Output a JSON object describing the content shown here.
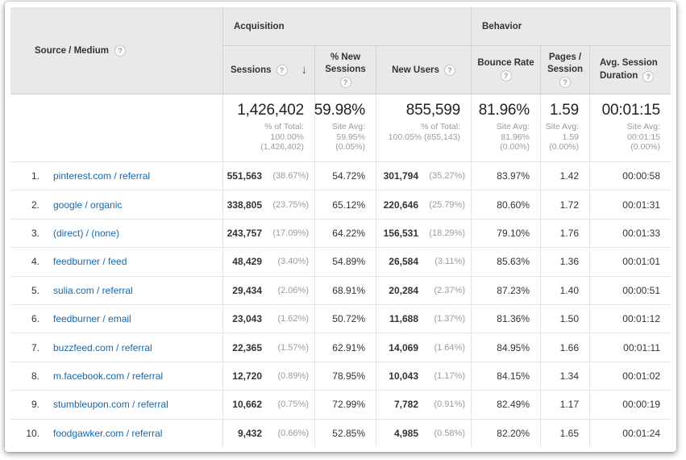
{
  "colors": {
    "link": "#1767ae",
    "header_bg": "#e9e9e9",
    "border": "#d4d4d4",
    "row_border": "#e5e5e5",
    "muted_text": "#9b9b9b"
  },
  "icons": {
    "help": "?",
    "sort_descending": "↓"
  },
  "header": {
    "corner_label": "Source / Medium",
    "groups": {
      "acquisition": "Acquisition",
      "behavior": "Behavior"
    },
    "columns": {
      "sessions": {
        "label": "Sessions"
      },
      "pct_new_sessions": {
        "line1": "% New",
        "line2": "Sessions"
      },
      "new_users": {
        "label": "New Users"
      },
      "bounce_rate": {
        "label": "Bounce Rate"
      },
      "pages_per_session": {
        "line1": "Pages /",
        "line2": "Session"
      },
      "avg_session_duration": {
        "line1": "Avg. Session",
        "line2": "Duration"
      }
    }
  },
  "summary": {
    "sessions": {
      "value": "1,426,402",
      "notes": [
        "% of Total:",
        "100.00%",
        "(1,426,402)"
      ]
    },
    "pct_new_sessions": {
      "value": "59.98%",
      "notes": [
        "Site Avg:",
        "59.95%",
        "(0.05%)"
      ]
    },
    "new_users": {
      "value": "855,599",
      "notes": [
        "% of Total:",
        "100.05% (855,143)"
      ]
    },
    "bounce_rate": {
      "value": "81.96%",
      "notes": [
        "Site Avg:",
        "81.96%",
        "(0.00%)"
      ]
    },
    "pages_per_session": {
      "value": "1.59",
      "notes": [
        "Site Avg:",
        "1.59",
        "(0.00%)"
      ]
    },
    "avg_session_duration": {
      "value": "00:01:15",
      "notes": [
        "Site Avg:",
        "00:01:15",
        "(0.00%)"
      ]
    }
  },
  "rows": [
    {
      "rank": "1.",
      "source_medium": "pinterest.com / referral",
      "sessions": "551,563",
      "sessions_pct": "(38.67%)",
      "pct_new_sessions": "54.72%",
      "new_users": "301,794",
      "new_users_pct": "(35.27%)",
      "bounce_rate": "83.97%",
      "pages_per_session": "1.42",
      "avg_session_duration": "00:00:58"
    },
    {
      "rank": "2.",
      "source_medium": "google / organic",
      "sessions": "338,805",
      "sessions_pct": "(23.75%)",
      "pct_new_sessions": "65.12%",
      "new_users": "220,646",
      "new_users_pct": "(25.79%)",
      "bounce_rate": "80.60%",
      "pages_per_session": "1.72",
      "avg_session_duration": "00:01:31"
    },
    {
      "rank": "3.",
      "source_medium": "(direct) / (none)",
      "sessions": "243,757",
      "sessions_pct": "(17.09%)",
      "pct_new_sessions": "64.22%",
      "new_users": "156,531",
      "new_users_pct": "(18.29%)",
      "bounce_rate": "79.10%",
      "pages_per_session": "1.76",
      "avg_session_duration": "00:01:33"
    },
    {
      "rank": "4.",
      "source_medium": "feedburner / feed",
      "sessions": "48,429",
      "sessions_pct": "(3.40%)",
      "pct_new_sessions": "54.89%",
      "new_users": "26,584",
      "new_users_pct": "(3.11%)",
      "bounce_rate": "85.63%",
      "pages_per_session": "1.36",
      "avg_session_duration": "00:01:01"
    },
    {
      "rank": "5.",
      "source_medium": "sulia.com / referral",
      "sessions": "29,434",
      "sessions_pct": "(2.06%)",
      "pct_new_sessions": "68.91%",
      "new_users": "20,284",
      "new_users_pct": "(2.37%)",
      "bounce_rate": "87.23%",
      "pages_per_session": "1.40",
      "avg_session_duration": "00:00:51"
    },
    {
      "rank": "6.",
      "source_medium": "feedburner / email",
      "sessions": "23,043",
      "sessions_pct": "(1.62%)",
      "pct_new_sessions": "50.72%",
      "new_users": "11,688",
      "new_users_pct": "(1.37%)",
      "bounce_rate": "81.36%",
      "pages_per_session": "1.50",
      "avg_session_duration": "00:01:12"
    },
    {
      "rank": "7.",
      "source_medium": "buzzfeed.com / referral",
      "sessions": "22,365",
      "sessions_pct": "(1.57%)",
      "pct_new_sessions": "62.91%",
      "new_users": "14,069",
      "new_users_pct": "(1.64%)",
      "bounce_rate": "84.95%",
      "pages_per_session": "1.66",
      "avg_session_duration": "00:01:11"
    },
    {
      "rank": "8.",
      "source_medium": "m.facebook.com / referral",
      "sessions": "12,720",
      "sessions_pct": "(0.89%)",
      "pct_new_sessions": "78.95%",
      "new_users": "10,043",
      "new_users_pct": "(1.17%)",
      "bounce_rate": "84.15%",
      "pages_per_session": "1.34",
      "avg_session_duration": "00:01:02"
    },
    {
      "rank": "9.",
      "source_medium": "stumbleupon.com / referral",
      "sessions": "10,662",
      "sessions_pct": "(0.75%)",
      "pct_new_sessions": "72.99%",
      "new_users": "7,782",
      "new_users_pct": "(0.91%)",
      "bounce_rate": "82.49%",
      "pages_per_session": "1.17",
      "avg_session_duration": "00:00:19"
    },
    {
      "rank": "10.",
      "source_medium": "foodgawker.com / referral",
      "sessions": "9,432",
      "sessions_pct": "(0.66%)",
      "pct_new_sessions": "52.85%",
      "new_users": "4,985",
      "new_users_pct": "(0.58%)",
      "bounce_rate": "82.20%",
      "pages_per_session": "1.65",
      "avg_session_duration": "00:01:24"
    }
  ]
}
